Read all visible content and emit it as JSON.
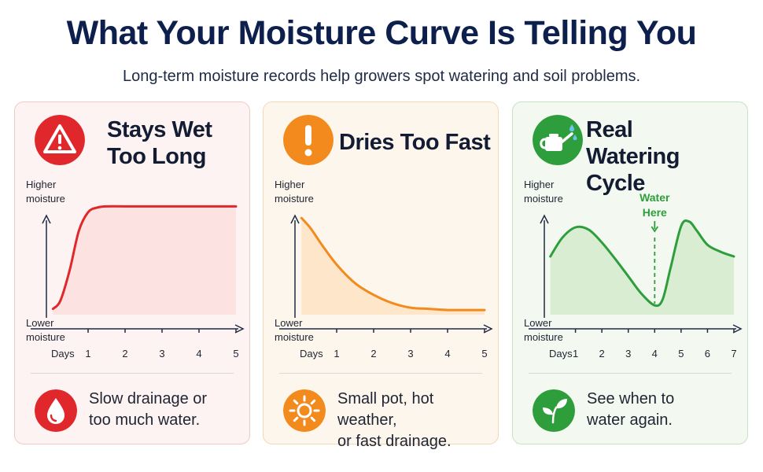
{
  "page": {
    "title": "What Your Moisture Curve Is Telling You",
    "subtitle": "Long-term moisture records help growers spot watering and soil problems."
  },
  "colors": {
    "title": "#0d1f4d",
    "red": "#e0282c",
    "orange": "#f28a1e",
    "green": "#2e9e3c"
  },
  "cards": [
    {
      "title_line1": "Stays Wet",
      "title_line2": "Too Long",
      "icon": "warning-triangle-icon",
      "footer_icon": "water-drop-icon",
      "footer_line1": "Slow drainage or",
      "footer_line2": "too much water."
    },
    {
      "title_line1": "Dries Too Fast",
      "title_line2": "",
      "icon": "exclamation-icon",
      "footer_icon": "sun-icon",
      "footer_line1": "Small pot, hot weather,",
      "footer_line2": "or fast drainage."
    },
    {
      "title_line1": "Real Watering",
      "title_line2": "Cycle",
      "icon": "watering-can-icon",
      "footer_icon": "leaf-sprout-icon",
      "footer_line1": "See when to",
      "footer_line2": "water again."
    }
  ],
  "chart_data": [
    {
      "type": "area",
      "title": "Stays Wet Too Long",
      "xlabel": "Days",
      "ylabel_top": "Higher moisture",
      "ylabel_bottom": "Lower moisture",
      "x_ticks": [
        "1",
        "2",
        "3",
        "4",
        "5"
      ],
      "xlim": [
        0,
        5
      ],
      "ylim": [
        0,
        1
      ],
      "color": "#e0282c",
      "fill": "#fbdede",
      "x": [
        0.05,
        0.25,
        0.5,
        0.75,
        1.0,
        1.25,
        1.5,
        2,
        3,
        4,
        5
      ],
      "y": [
        0.05,
        0.12,
        0.38,
        0.72,
        0.88,
        0.92,
        0.93,
        0.93,
        0.93,
        0.93,
        0.93
      ]
    },
    {
      "type": "area",
      "title": "Dries Too Fast",
      "xlabel": "Days",
      "ylabel_top": "Higher moisture",
      "ylabel_bottom": "Lower moisture",
      "x_ticks": [
        "1",
        "2",
        "3",
        "4",
        "5"
      ],
      "xlim": [
        0,
        5
      ],
      "ylim": [
        0,
        1
      ],
      "color": "#f28a1e",
      "fill": "#fde3c3",
      "x": [
        0.05,
        0.3,
        0.6,
        1,
        1.5,
        2,
        2.5,
        3,
        3.5,
        4,
        4.5,
        5
      ],
      "y": [
        0.83,
        0.74,
        0.6,
        0.43,
        0.27,
        0.17,
        0.1,
        0.06,
        0.05,
        0.04,
        0.04,
        0.04
      ]
    },
    {
      "type": "area",
      "title": "Real Watering Cycle",
      "xlabel": "Days",
      "ylabel_top": "Higher moisture",
      "ylabel_bottom": "Lower moisture",
      "x_ticks": [
        "1",
        "2",
        "3",
        "4",
        "5",
        "6",
        "7"
      ],
      "xlim": [
        0,
        7
      ],
      "ylim": [
        0,
        1
      ],
      "color": "#2e9e3c",
      "fill": "#d3ebcc",
      "x": [
        0.05,
        0.5,
        1,
        1.5,
        2,
        2.5,
        3,
        3.5,
        4,
        4.3,
        4.6,
        5,
        5.3,
        5.6,
        6,
        6.5,
        7
      ],
      "y": [
        0.5,
        0.66,
        0.75,
        0.73,
        0.62,
        0.48,
        0.33,
        0.18,
        0.08,
        0.13,
        0.4,
        0.76,
        0.8,
        0.72,
        0.6,
        0.54,
        0.5
      ],
      "annotation": {
        "label_line1": "Water",
        "label_line2": "Here",
        "x": 4
      }
    }
  ]
}
